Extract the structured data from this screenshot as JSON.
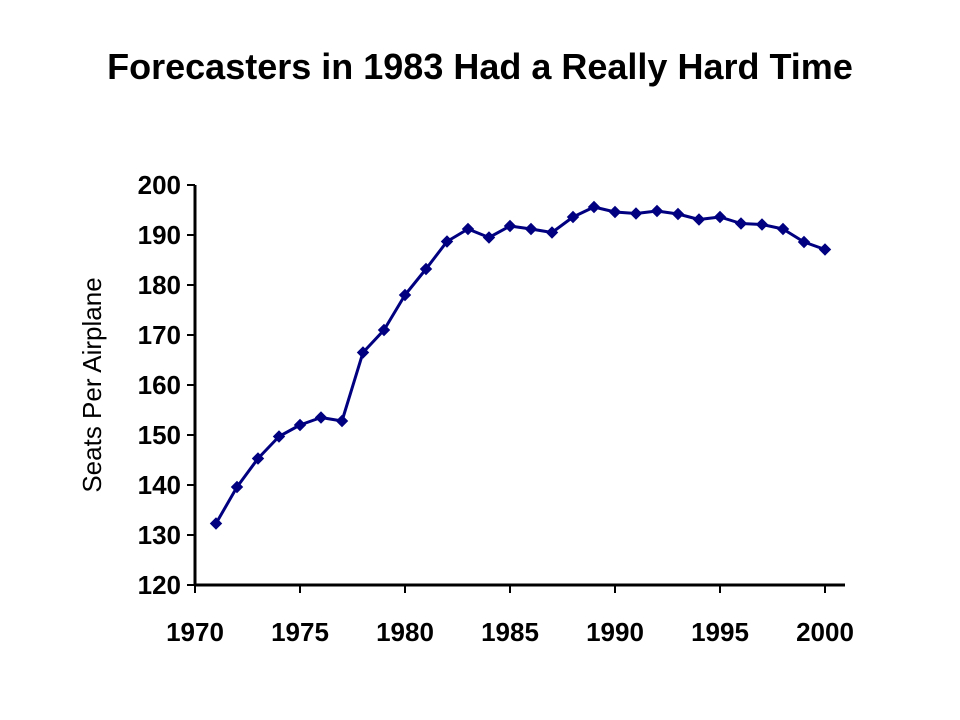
{
  "chart_data": {
    "type": "line",
    "title": "Forecasters in 1983 Had a Really Hard Time",
    "xlabel": "",
    "ylabel": "Seats Per Airplane",
    "xlim": [
      1970,
      2001
    ],
    "ylim": [
      120,
      200
    ],
    "x_ticks": [
      1970,
      1975,
      1980,
      1985,
      1990,
      1995,
      2000
    ],
    "y_ticks": [
      120,
      130,
      140,
      150,
      160,
      170,
      180,
      190,
      200
    ],
    "grid": false,
    "legend": "none",
    "line_color": "#000080",
    "marker": "diamond",
    "series": [
      {
        "x": [
          1971,
          1972,
          1973,
          1974,
          1975,
          1976,
          1977,
          1978,
          1979,
          1980,
          1981,
          1982,
          1983,
          1984,
          1985,
          1986,
          1987,
          1988,
          1989,
          1990,
          1991,
          1992,
          1993,
          1994,
          1995,
          1996,
          1997,
          1998,
          1999,
          2000
        ],
        "values": [
          132.3,
          139.6,
          145.3,
          149.7,
          152.0,
          153.5,
          152.8,
          166.5,
          171.0,
          178.0,
          183.2,
          188.7,
          191.2,
          189.5,
          191.8,
          191.2,
          190.5,
          193.6,
          195.6,
          194.6,
          194.3,
          194.8,
          194.2,
          193.1,
          193.6,
          192.3,
          192.1,
          191.2,
          188.6,
          187.1
        ]
      }
    ]
  }
}
